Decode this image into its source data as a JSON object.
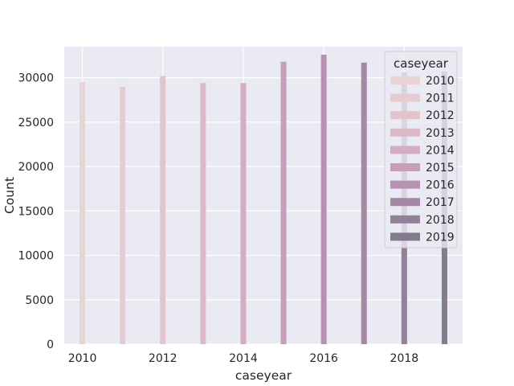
{
  "chart_data": {
    "type": "bar",
    "title": "",
    "xlabel": "caseyear",
    "ylabel": "Count",
    "xlim": [
      2009.55,
      2019.45
    ],
    "ylim": [
      0,
      33500
    ],
    "grid": true,
    "xticks": [
      2010,
      2012,
      2014,
      2016,
      2018
    ],
    "yticks": [
      0,
      5000,
      10000,
      15000,
      20000,
      25000,
      30000
    ],
    "legend": {
      "title": "caseyear",
      "position": "top-right"
    },
    "series": [
      {
        "name": "2010",
        "x": 2010,
        "value": 29500,
        "color": "#e8d3d5"
      },
      {
        "name": "2011",
        "x": 2011,
        "value": 29000,
        "color": "#e5ccd0"
      },
      {
        "name": "2012",
        "x": 2012,
        "value": 30200,
        "color": "#e2c4cc"
      },
      {
        "name": "2013",
        "x": 2013,
        "value": 29400,
        "color": "#dcb9c7"
      },
      {
        "name": "2014",
        "x": 2014,
        "value": 29400,
        "color": "#d5adc2"
      },
      {
        "name": "2015",
        "x": 2015,
        "value": 31800,
        "color": "#c79fba"
      },
      {
        "name": "2016",
        "x": 2016,
        "value": 32600,
        "color": "#b892b2"
      },
      {
        "name": "2017",
        "x": 2017,
        "value": 31700,
        "color": "#a588a4"
      },
      {
        "name": "2018",
        "x": 2018,
        "value": 30600,
        "color": "#938099"
      },
      {
        "name": "2019",
        "x": 2019,
        "value": 30700,
        "color": "#857b8e"
      }
    ]
  }
}
